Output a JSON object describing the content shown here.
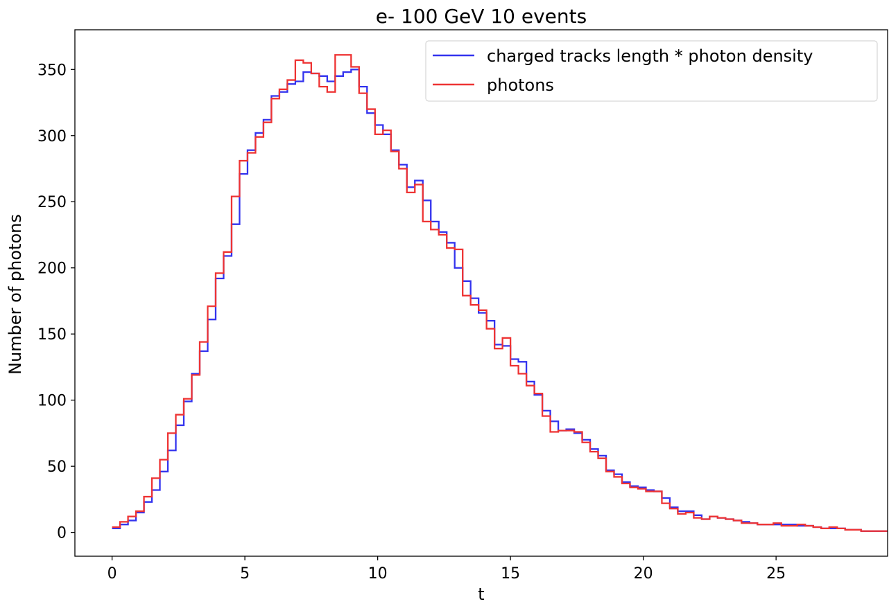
{
  "chart_data": {
    "type": "line",
    "drawstyle": "steps",
    "title": "e- 100 GeV 10 events",
    "xlabel": "t",
    "ylabel": "Number of photons",
    "xlim": [
      -1.4,
      29.2
    ],
    "ylim": [
      -18,
      380
    ],
    "xticks": [
      0,
      5,
      10,
      15,
      20,
      25
    ],
    "yticks": [
      0,
      50,
      100,
      150,
      200,
      250,
      300,
      350
    ],
    "grid": false,
    "legend_position": "top-right",
    "bin_width": 0.3,
    "x_start": 0.0,
    "series": [
      {
        "name": "charged tracks length * photon density",
        "color": "#3333ee",
        "values": [
          3,
          6,
          9,
          15,
          23,
          32,
          46,
          62,
          81,
          99,
          120,
          137,
          161,
          192,
          209,
          233,
          271,
          289,
          302,
          312,
          330,
          333,
          339,
          341,
          348,
          347,
          345,
          341,
          345,
          348,
          350,
          337,
          317,
          308,
          301,
          289,
          278,
          261,
          266,
          251,
          235,
          227,
          219,
          200,
          190,
          177,
          166,
          160,
          142,
          141,
          131,
          129,
          114,
          104,
          92,
          84,
          77,
          78,
          75,
          70,
          63,
          58,
          47,
          44,
          38,
          35,
          34,
          32,
          31,
          26,
          19,
          16,
          16,
          13,
          10,
          12,
          11,
          10,
          9,
          8,
          7,
          6,
          6,
          6,
          6,
          6,
          5,
          5,
          4,
          3,
          3,
          3,
          2,
          2,
          1,
          1,
          1,
          1,
          1,
          1,
          1,
          1
        ]
      },
      {
        "name": "photons",
        "color": "#ee3333",
        "values": [
          4,
          8,
          12,
          16,
          27,
          41,
          55,
          75,
          89,
          101,
          119,
          144,
          171,
          196,
          212,
          254,
          281,
          287,
          299,
          310,
          328,
          335,
          342,
          357,
          355,
          347,
          337,
          333,
          361,
          361,
          352,
          332,
          320,
          301,
          304,
          288,
          275,
          257,
          263,
          235,
          229,
          225,
          215,
          214,
          179,
          172,
          168,
          154,
          139,
          147,
          126,
          120,
          111,
          105,
          88,
          76,
          77,
          77,
          76,
          68,
          61,
          56,
          46,
          42,
          37,
          34,
          33,
          31,
          31,
          22,
          18,
          14,
          15,
          11,
          10,
          12,
          11,
          10,
          9,
          7,
          7,
          6,
          6,
          7,
          5,
          5,
          6,
          5,
          4,
          3,
          4,
          3,
          2,
          2,
          1,
          1,
          1,
          1,
          1,
          1,
          1,
          2
        ]
      }
    ]
  }
}
